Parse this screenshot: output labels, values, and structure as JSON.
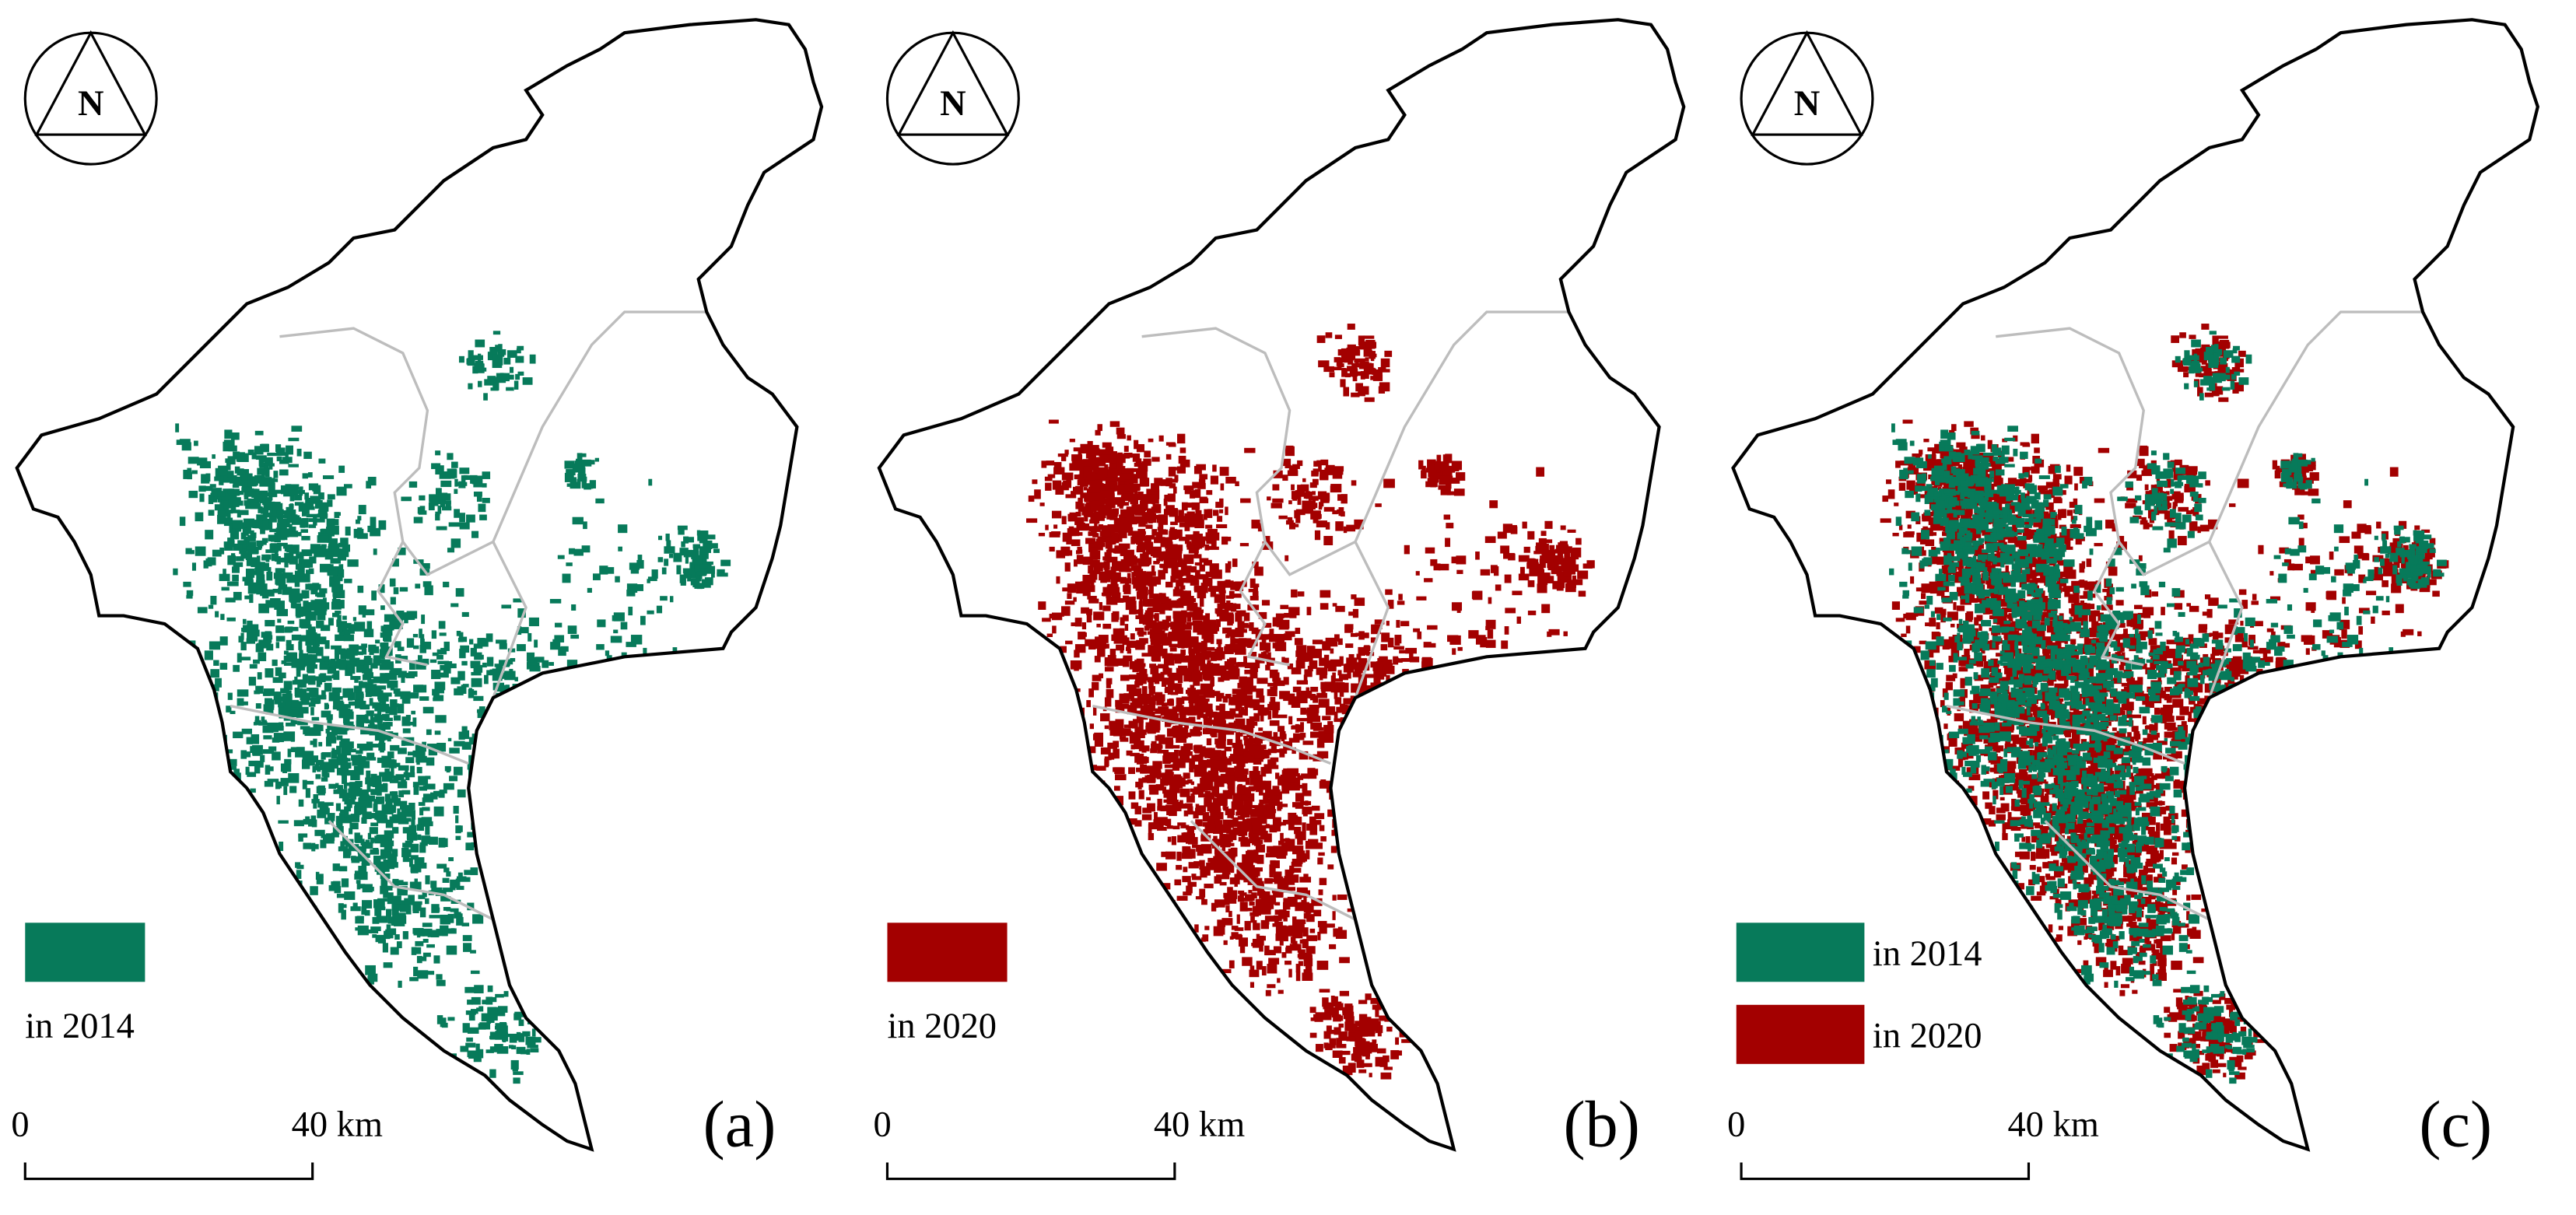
{
  "panels": [
    {
      "label": "(a)",
      "north": "N",
      "legend": [
        {
          "text": "in 2014",
          "color": "#077a5a"
        }
      ],
      "scale": {
        "start": "0",
        "end": "40 km"
      }
    },
    {
      "label": "(b)",
      "north": "N",
      "legend": [
        {
          "text": "in 2020",
          "color": "#a30000"
        }
      ],
      "scale": {
        "start": "0",
        "end": "40 km"
      }
    },
    {
      "label": "(c)",
      "north": "N",
      "legend": [
        {
          "text": "in 2014",
          "color": "#077a5a"
        },
        {
          "text": "in 2020",
          "color": "#a30000"
        }
      ],
      "scale": {
        "start": "0",
        "end": "40 km"
      }
    }
  ]
}
